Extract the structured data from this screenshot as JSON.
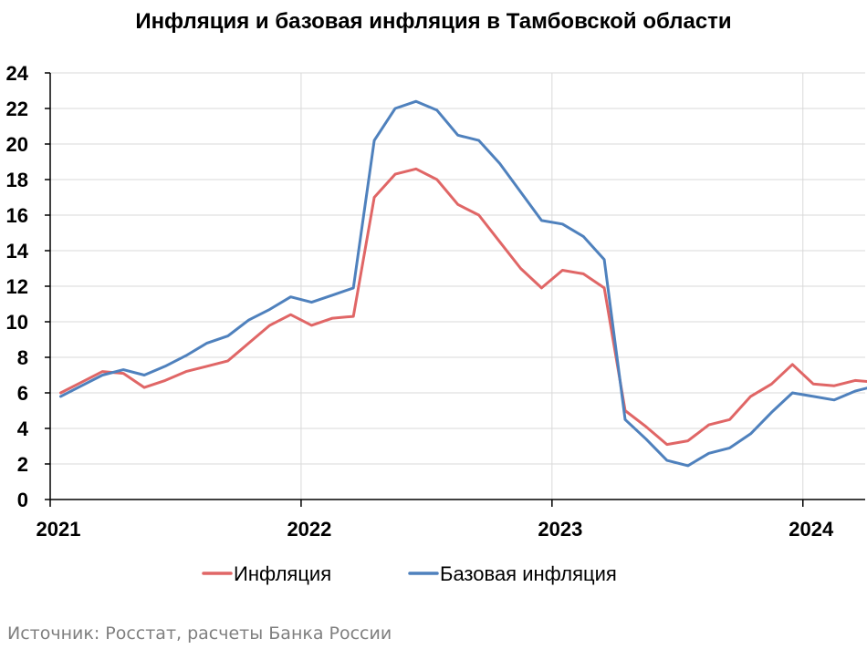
{
  "chart_data": {
    "type": "line",
    "title": "Инфляция и базовая инфляция в Тамбовской области",
    "xlabel": "",
    "ylabel": "",
    "ylim": [
      0,
      24
    ],
    "yticks": [
      0,
      2,
      4,
      6,
      8,
      10,
      12,
      14,
      16,
      18,
      20,
      22,
      24
    ],
    "xticks": [
      "2021",
      "2022",
      "2023",
      "2024"
    ],
    "grid": true,
    "legend_position": "bottom",
    "x": [
      "2021-01",
      "2021-02",
      "2021-03",
      "2021-04",
      "2021-05",
      "2021-06",
      "2021-07",
      "2021-08",
      "2021-09",
      "2021-10",
      "2021-11",
      "2021-12",
      "2022-01",
      "2022-02",
      "2022-03",
      "2022-04",
      "2022-05",
      "2022-06",
      "2022-07",
      "2022-08",
      "2022-09",
      "2022-10",
      "2022-11",
      "2022-12",
      "2023-01",
      "2023-02",
      "2023-03",
      "2023-04",
      "2023-05",
      "2023-06",
      "2023-07",
      "2023-08",
      "2023-09",
      "2023-10",
      "2023-11",
      "2023-12",
      "2024-01",
      "2024-02",
      "2024-03",
      "2024-04"
    ],
    "series": [
      {
        "name": "Инфляция",
        "color": "#e06666",
        "values": [
          6.0,
          6.6,
          7.2,
          7.1,
          6.3,
          6.7,
          7.2,
          7.5,
          7.8,
          8.8,
          9.8,
          10.4,
          9.8,
          10.2,
          10.3,
          17.0,
          18.3,
          18.6,
          18.0,
          16.6,
          16.0,
          14.5,
          13.0,
          11.9,
          12.9,
          12.7,
          11.9,
          5.0,
          4.1,
          3.1,
          3.3,
          4.2,
          4.5,
          5.8,
          6.5,
          7.6,
          6.5,
          6.4,
          6.7,
          6.6
        ]
      },
      {
        "name": "Базовая инфляция",
        "color": "#4f81bd",
        "values": [
          5.8,
          6.4,
          7.0,
          7.3,
          7.0,
          7.5,
          8.1,
          8.8,
          9.2,
          10.1,
          10.7,
          11.4,
          11.1,
          11.5,
          11.9,
          20.2,
          22.0,
          22.4,
          21.9,
          20.5,
          20.2,
          18.9,
          17.3,
          15.7,
          15.5,
          14.8,
          13.5,
          4.5,
          3.4,
          2.2,
          1.9,
          2.6,
          2.9,
          3.7,
          4.9,
          6.0,
          5.8,
          5.6,
          6.1,
          6.4
        ]
      }
    ]
  },
  "source_note": "Источник: Росстат, расчеты Банка России"
}
